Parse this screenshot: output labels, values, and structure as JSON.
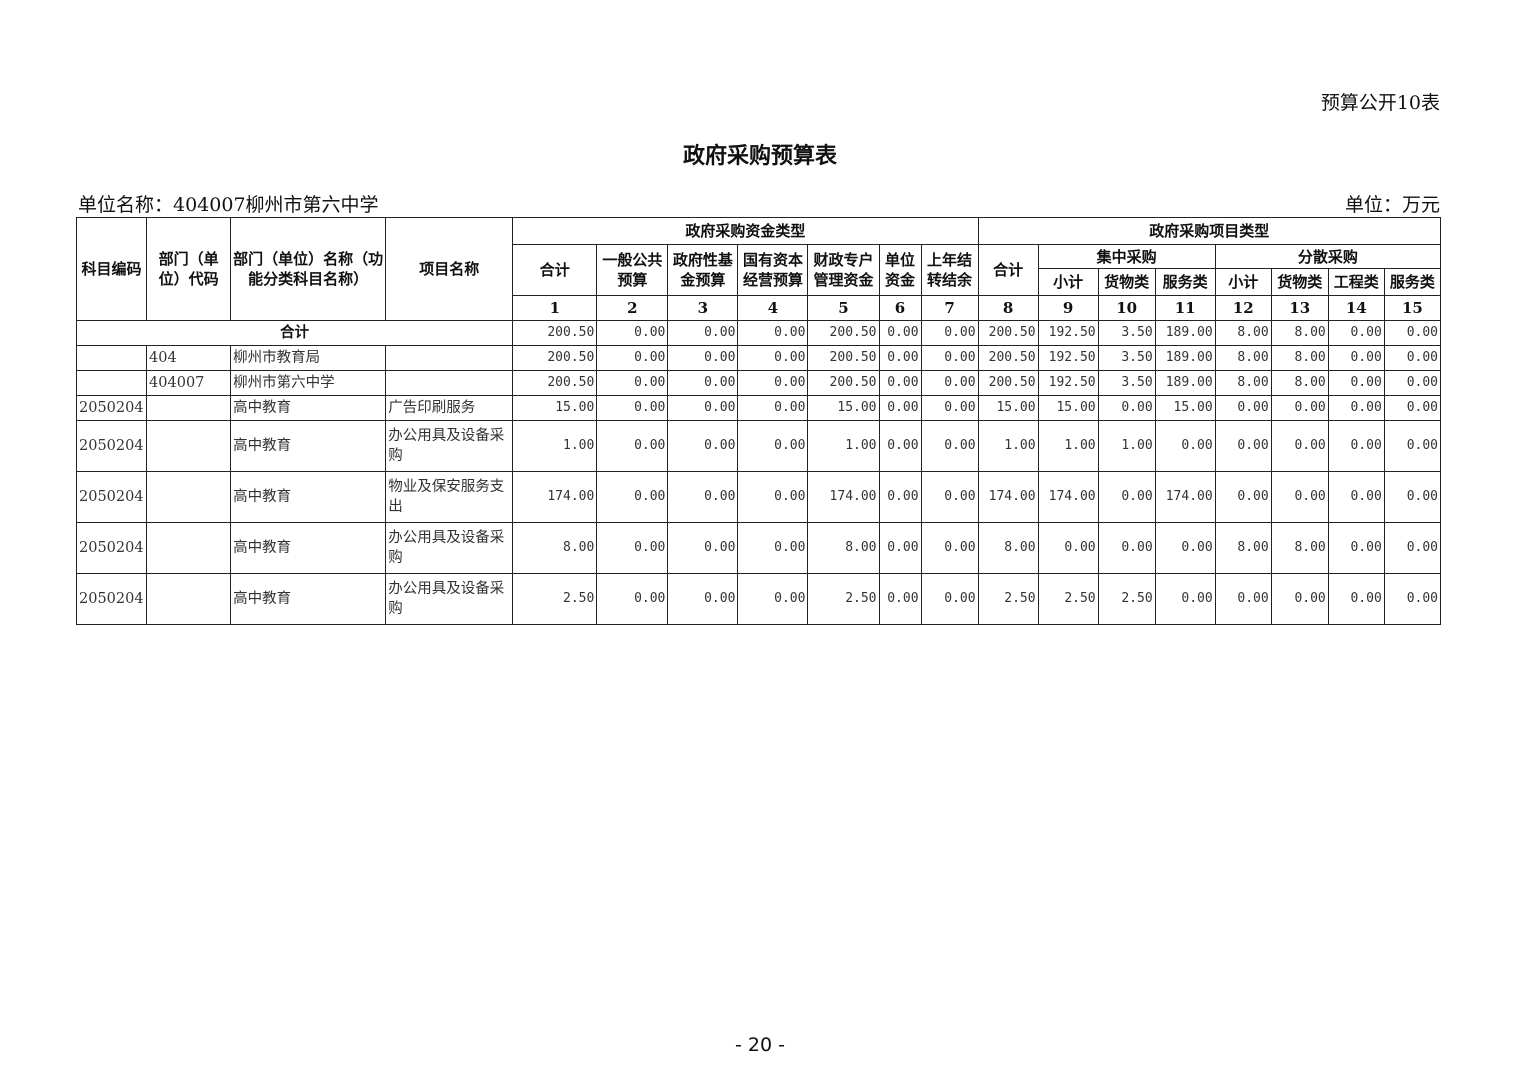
{
  "form_code": "预算公开10表",
  "title": "政府采购预算表",
  "unit_name": "单位名称：404007柳州市第六中学",
  "unit": "单位：万元",
  "page_number": "- 20 -",
  "headers": {
    "subject_code": "科目编码",
    "dept_code": "部门（单位）代码",
    "dept_name": "部门（单位）名称（功能分类科目名称）",
    "project_name": "项目名称",
    "fund_type": "政府采购资金类型",
    "project_type": "政府采购项目类型",
    "fund_cols": [
      "合计",
      "一般公共预算",
      "政府性基金预算",
      "国有资本经营预算",
      "财政专户管理资金",
      "单位资金",
      "上年结转结余"
    ],
    "proj_total": "合计",
    "centralized": "集中采购",
    "dispersed": "分散采购",
    "centralized_cols": [
      "小计",
      "货物类",
      "服务类"
    ],
    "dispersed_cols": [
      "小计",
      "货物类",
      "工程类",
      "服务类"
    ],
    "numbers": [
      "1",
      "2",
      "3",
      "4",
      "5",
      "6",
      "7",
      "8",
      "9",
      "10",
      "11",
      "12",
      "13",
      "14",
      "15"
    ]
  },
  "total_row": {
    "label": "合计",
    "values": [
      "200.50",
      "0.00",
      "0.00",
      "0.00",
      "200.50",
      "0.00",
      "0.00",
      "200.50",
      "192.50",
      "3.50",
      "189.00",
      "8.00",
      "8.00",
      "0.00",
      "0.00"
    ]
  },
  "rows": [
    {
      "subject_code": "",
      "dept_code": "404",
      "dept_name": "柳州市教育局",
      "project": "",
      "values": [
        "200.50",
        "0.00",
        "0.00",
        "0.00",
        "200.50",
        "0.00",
        "0.00",
        "200.50",
        "192.50",
        "3.50",
        "189.00",
        "8.00",
        "8.00",
        "0.00",
        "0.00"
      ]
    },
    {
      "subject_code": "",
      "dept_code": "404007",
      "dept_name": "柳州市第六中学",
      "project": "",
      "values": [
        "200.50",
        "0.00",
        "0.00",
        "0.00",
        "200.50",
        "0.00",
        "0.00",
        "200.50",
        "192.50",
        "3.50",
        "189.00",
        "8.00",
        "8.00",
        "0.00",
        "0.00"
      ]
    },
    {
      "subject_code": "2050204",
      "dept_code": "",
      "dept_name": "高中教育",
      "project": "广告印刷服务",
      "values": [
        "15.00",
        "0.00",
        "0.00",
        "0.00",
        "15.00",
        "0.00",
        "0.00",
        "15.00",
        "15.00",
        "0.00",
        "15.00",
        "0.00",
        "0.00",
        "0.00",
        "0.00"
      ]
    },
    {
      "subject_code": "2050204",
      "dept_code": "",
      "dept_name": "高中教育",
      "project": "办公用具及设备采购",
      "values": [
        "1.00",
        "0.00",
        "0.00",
        "0.00",
        "1.00",
        "0.00",
        "0.00",
        "1.00",
        "1.00",
        "1.00",
        "0.00",
        "0.00",
        "0.00",
        "0.00",
        "0.00"
      ]
    },
    {
      "subject_code": "2050204",
      "dept_code": "",
      "dept_name": "高中教育",
      "project": "物业及保安服务支出",
      "values": [
        "174.00",
        "0.00",
        "0.00",
        "0.00",
        "174.00",
        "0.00",
        "0.00",
        "174.00",
        "174.00",
        "0.00",
        "174.00",
        "0.00",
        "0.00",
        "0.00",
        "0.00"
      ]
    },
    {
      "subject_code": "2050204",
      "dept_code": "",
      "dept_name": "高中教育",
      "project": "办公用具及设备采购",
      "values": [
        "8.00",
        "0.00",
        "0.00",
        "0.00",
        "8.00",
        "0.00",
        "0.00",
        "8.00",
        "0.00",
        "0.00",
        "0.00",
        "8.00",
        "8.00",
        "0.00",
        "0.00"
      ]
    },
    {
      "subject_code": "2050204",
      "dept_code": "",
      "dept_name": "高中教育",
      "project": "办公用具及设备采购",
      "values": [
        "2.50",
        "0.00",
        "0.00",
        "0.00",
        "2.50",
        "0.00",
        "0.00",
        "2.50",
        "2.50",
        "2.50",
        "0.00",
        "0.00",
        "0.00",
        "0.00",
        "0.00"
      ]
    }
  ]
}
